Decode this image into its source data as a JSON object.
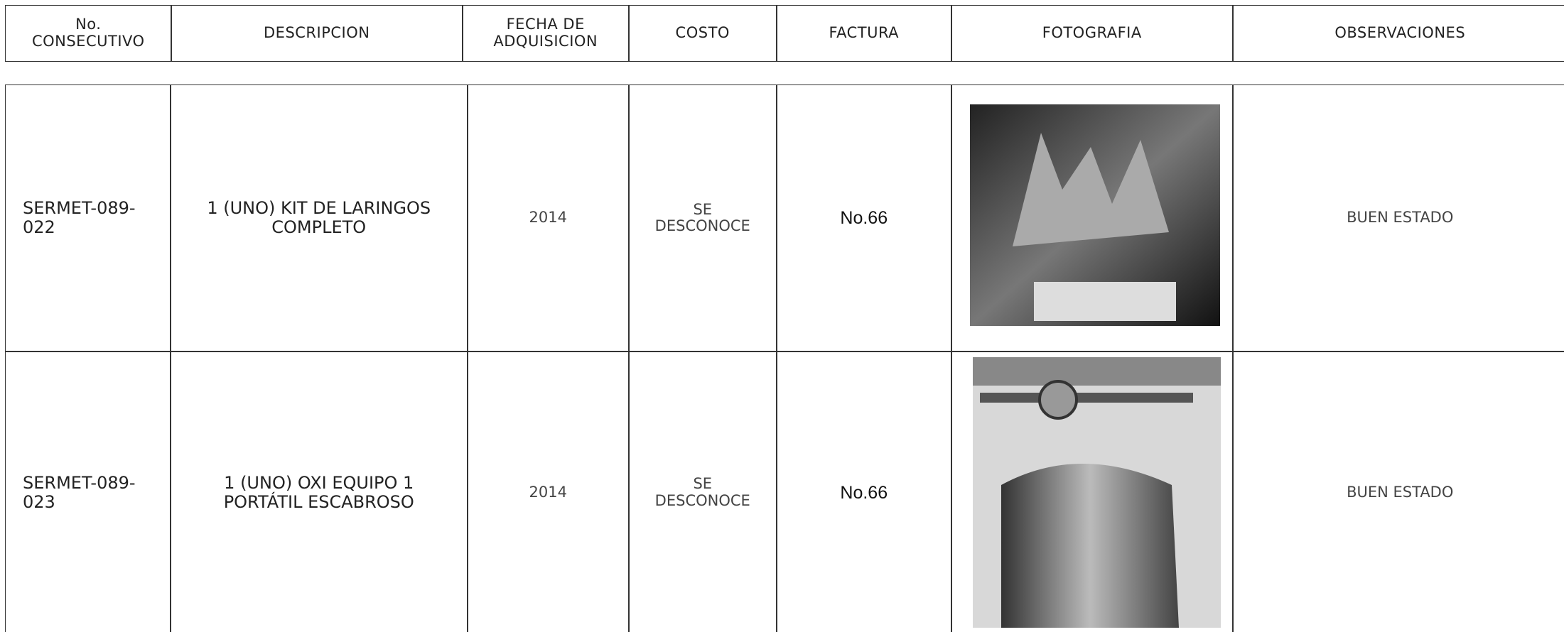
{
  "header": {
    "columns": [
      "No.\nCONSECUTIVO",
      "DESCRIPCION",
      "FECHA DE\nADQUISICION",
      "COSTO",
      "FACTURA",
      "FOTOGRAFIA",
      "OBSERVACIONES"
    ]
  },
  "table": {
    "rows": [
      [
        "SERMET-089-022",
        "1 (UNO) KIT DE LARINGOS COMPLETO",
        "2014",
        "SE\nDESCONOCE",
        "No.66",
        "BUEN ESTADO"
      ],
      [
        "SERMET-089-023",
        "1 (UNO) OXI EQUIPO 1 PORTÁTIL ESCABROSO",
        "2014",
        "SE\nDESCONOCE",
        "No.66",
        "BUEN ESTADO"
      ]
    ]
  }
}
